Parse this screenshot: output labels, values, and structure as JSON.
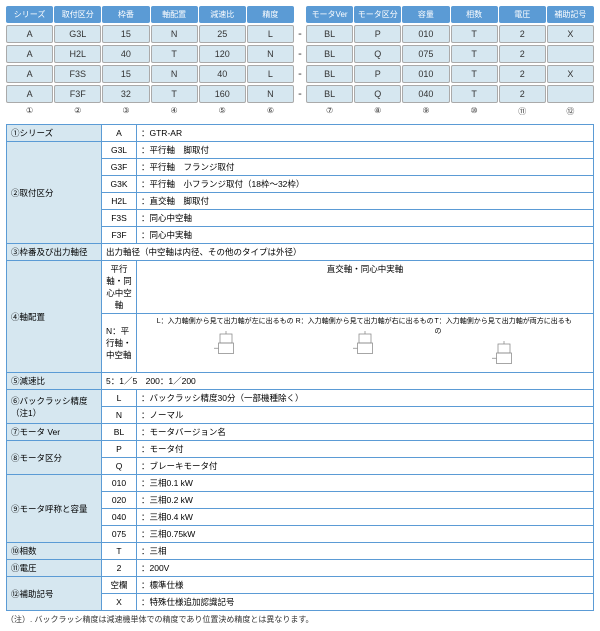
{
  "headers1": [
    "シリーズ",
    "取付区分",
    "枠番",
    "軸配置",
    "減速比",
    "精度"
  ],
  "headers2": [
    "モータVer",
    "モータ区分",
    "容量",
    "相数",
    "電圧",
    "補助記号"
  ],
  "rows": [
    [
      "A",
      "G3L",
      "15",
      "N",
      "25",
      "L",
      "BL",
      "P",
      "010",
      "T",
      "2",
      "X"
    ],
    [
      "A",
      "H2L",
      "40",
      "T",
      "120",
      "N",
      "BL",
      "Q",
      "075",
      "T",
      "2",
      ""
    ],
    [
      "A",
      "F3S",
      "15",
      "N",
      "40",
      "L",
      "BL",
      "P",
      "010",
      "T",
      "2",
      "X"
    ],
    [
      "A",
      "F3F",
      "32",
      "T",
      "160",
      "N",
      "BL",
      "Q",
      "040",
      "T",
      "2",
      ""
    ]
  ],
  "nums": [
    "①",
    "②",
    "③",
    "④",
    "⑤",
    "⑥",
    "⑦",
    "⑧",
    "⑨",
    "⑩",
    "⑪",
    "⑫"
  ],
  "spec": {
    "r1": {
      "lbl": "①シリーズ",
      "code": "A",
      "val": "：GTR-AR"
    },
    "r2": {
      "lbl": "②取付区分",
      "items": [
        [
          "G3L",
          "：平行軸　脚取付"
        ],
        [
          "G3F",
          "：平行軸　フランジ取付"
        ],
        [
          "G3K",
          "：平行軸　小フランジ取付（18枠～32枠）"
        ],
        [
          "H2L",
          "：直交軸　脚取付"
        ],
        [
          "F3S",
          "：同心中空軸"
        ],
        [
          "F3F",
          "：同心中実軸"
        ]
      ]
    },
    "r3": {
      "lbl": "③枠番及び出力軸径",
      "val": "出力軸径（中空軸は内径、その他のタイプは外径）"
    },
    "r4": {
      "lbl": "④軸配置",
      "h1": "平行軸・同心中空軸",
      "h2": "直交軸・同心中実軸",
      "left": "N：平行軸・中空軸",
      "d": [
        {
          "t": "L：入力軸側から見て出力軸が左に出るもの"
        },
        {
          "t": "R：入力軸側から見て出力軸が右に出るもの"
        },
        {
          "t": "T：入力軸側から見て出力軸が両方に出るもの"
        }
      ]
    },
    "r5": {
      "lbl": "⑤減速比",
      "val": "5：1／5　200：1／200"
    },
    "r6": {
      "lbl": "⑥バックラッシ精度（注1）",
      "items": [
        [
          "L",
          "：バックラッシ精度30分（一部機種除く）"
        ],
        [
          "N",
          "：ノーマル"
        ]
      ]
    },
    "r7": {
      "lbl": "⑦モータ Ver",
      "code": "BL",
      "val": "：モータバージョン名"
    },
    "r8": {
      "lbl": "⑧モータ区分",
      "items": [
        [
          "P",
          "：モータ付"
        ],
        [
          "Q",
          "：ブレーキモータ付"
        ]
      ]
    },
    "r9": {
      "lbl": "⑨モータ呼称と容量",
      "items": [
        [
          "010",
          "：三相0.1  kW"
        ],
        [
          "020",
          "：三相0.2  kW"
        ],
        [
          "040",
          "：三相0.4  kW"
        ],
        [
          "075",
          "：三相0.75kW"
        ]
      ]
    },
    "r10": {
      "lbl": "⑩相数",
      "code": "T",
      "val": "：三相"
    },
    "r11": {
      "lbl": "⑪電圧",
      "code": "2",
      "val": "：200V"
    },
    "r12": {
      "lbl": "⑫補助記号",
      "items": [
        [
          "空欄",
          "：標準仕様"
        ],
        [
          "X",
          "：特殊仕様追加認識記号"
        ]
      ]
    }
  },
  "note": "（注）. バックラッシ精度は減速機単体での精度であり位置決め精度とは異なります。"
}
